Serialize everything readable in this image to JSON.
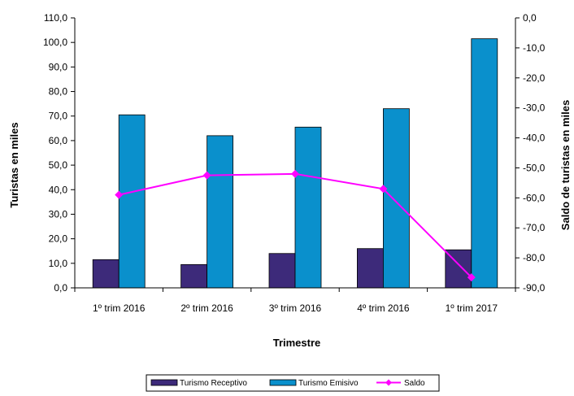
{
  "chart_data": {
    "type": "bar",
    "categories": [
      "1º trim 2016",
      "2º trim 2016",
      "3º trim 2016",
      "4º trim 2016",
      "1º trim 2017"
    ],
    "series": [
      {
        "name": "Turismo Receptivo",
        "type": "bar",
        "axis": "left",
        "color": "#3d2a7a",
        "values": [
          11.5,
          9.5,
          14.0,
          16.0,
          15.5
        ]
      },
      {
        "name": "Turismo Emisivo",
        "type": "bar",
        "axis": "left",
        "color": "#0a90cc",
        "values": [
          70.5,
          62.0,
          65.5,
          73.0,
          101.5
        ]
      },
      {
        "name": "Saldo",
        "type": "line",
        "axis": "right",
        "color": "#ff00ff",
        "marker": "diamond",
        "values": [
          -59.0,
          -52.5,
          -52.0,
          -57.0,
          -86.5
        ]
      }
    ],
    "xlabel": "Trimestre",
    "ylabel": "Turistas en miles",
    "y2label": "Saldo de turistas en miles",
    "ylim": [
      0,
      110
    ],
    "y2lim": [
      -90,
      0
    ],
    "yticks": [
      "0,0",
      "10,0",
      "20,0",
      "30,0",
      "40,0",
      "50,0",
      "60,0",
      "70,0",
      "80,0",
      "90,0",
      "100,0",
      "110,0"
    ],
    "y2ticks": [
      "-90,0",
      "-80,0",
      "-70,0",
      "-60,0",
      "-50,0",
      "-40,0",
      "-30,0",
      "-20,0",
      "-10,0",
      "0,0"
    ],
    "grid": false,
    "legend_position": "bottom"
  }
}
